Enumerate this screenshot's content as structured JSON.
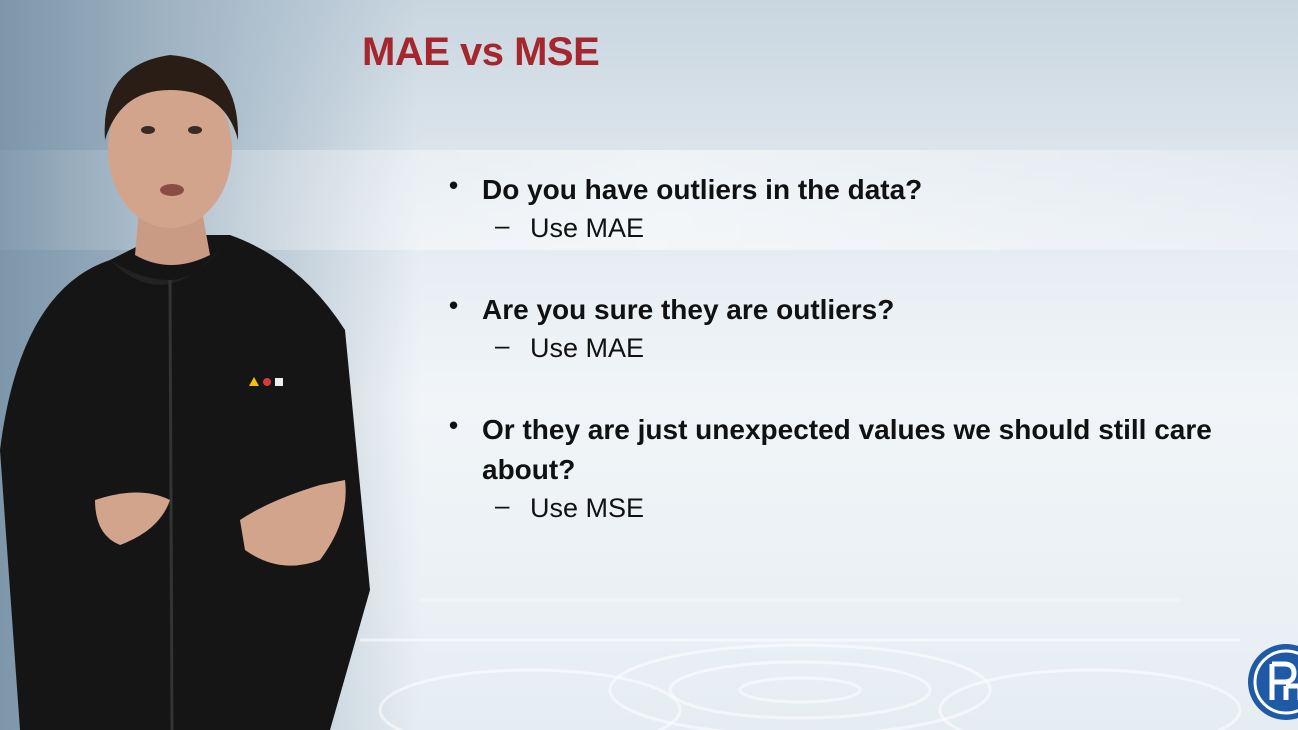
{
  "slide": {
    "title": "MAE vs MSE",
    "bullets": [
      {
        "text": "Do you have outliers in the data?",
        "sub": "Use MAE"
      },
      {
        "text": "Are you sure they are outliers?",
        "sub": "Use MAE"
      },
      {
        "text": "Or they are just unexpected values we should still care about?",
        "sub": "Use MSE"
      }
    ],
    "bullet_symbol": "•",
    "sub_symbol": "–"
  },
  "colors": {
    "title": "#a5272d",
    "text": "#111111",
    "logo": "#1f5aa6"
  },
  "icons": {
    "logo": "university-logo-icon",
    "presenter": "presenter-figure"
  }
}
